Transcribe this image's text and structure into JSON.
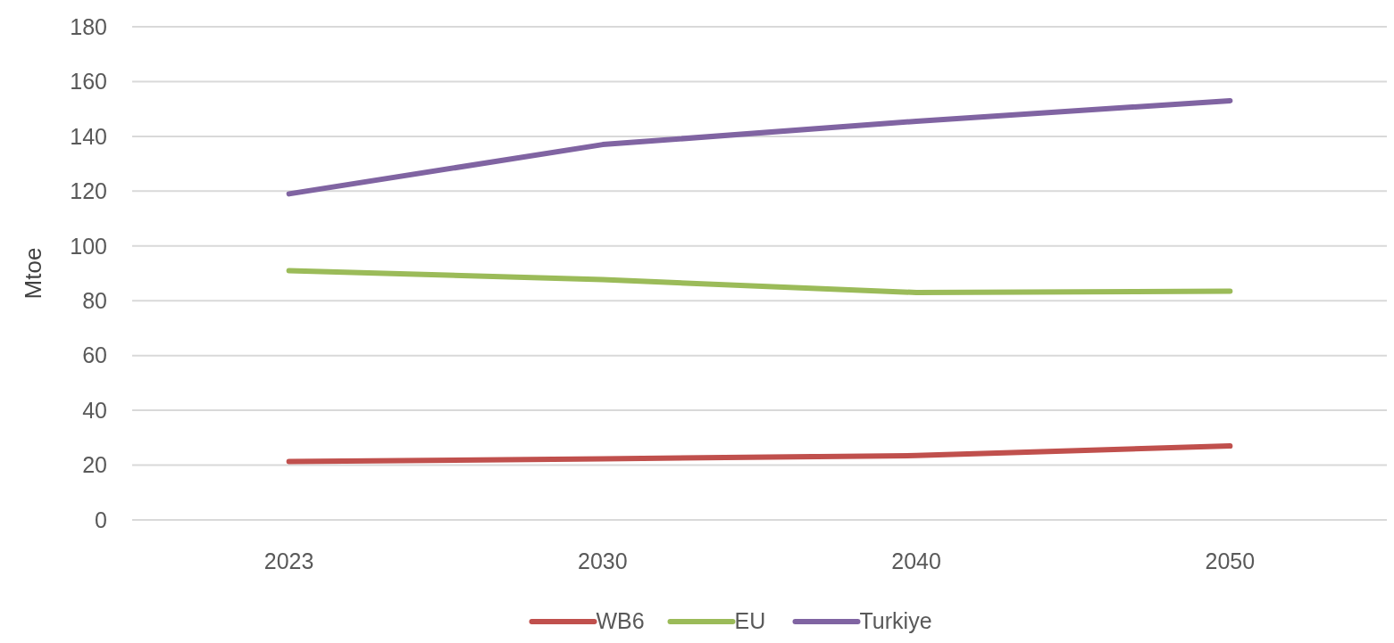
{
  "chart_data": {
    "type": "line",
    "ylabel": "Mtoe",
    "categories": [
      "2023",
      "2030",
      "2040",
      "2050"
    ],
    "series": [
      {
        "name": "WB6",
        "color": "#c0504d",
        "values": [
          21.3,
          22.3,
          23.5,
          27
        ]
      },
      {
        "name": "EU",
        "color": "#9bbb59",
        "values": [
          91,
          87.7,
          83,
          83.5
        ]
      },
      {
        "name": "Turkiye",
        "color": "#8064a2",
        "values": [
          119,
          137,
          145.5,
          153
        ]
      }
    ],
    "ylim": [
      0,
      180
    ],
    "yticks": [
      0,
      20,
      40,
      60,
      80,
      100,
      120,
      140,
      160,
      180
    ],
    "grid": "y",
    "legend": "bottom",
    "marker": "none",
    "line_style": "solid"
  }
}
